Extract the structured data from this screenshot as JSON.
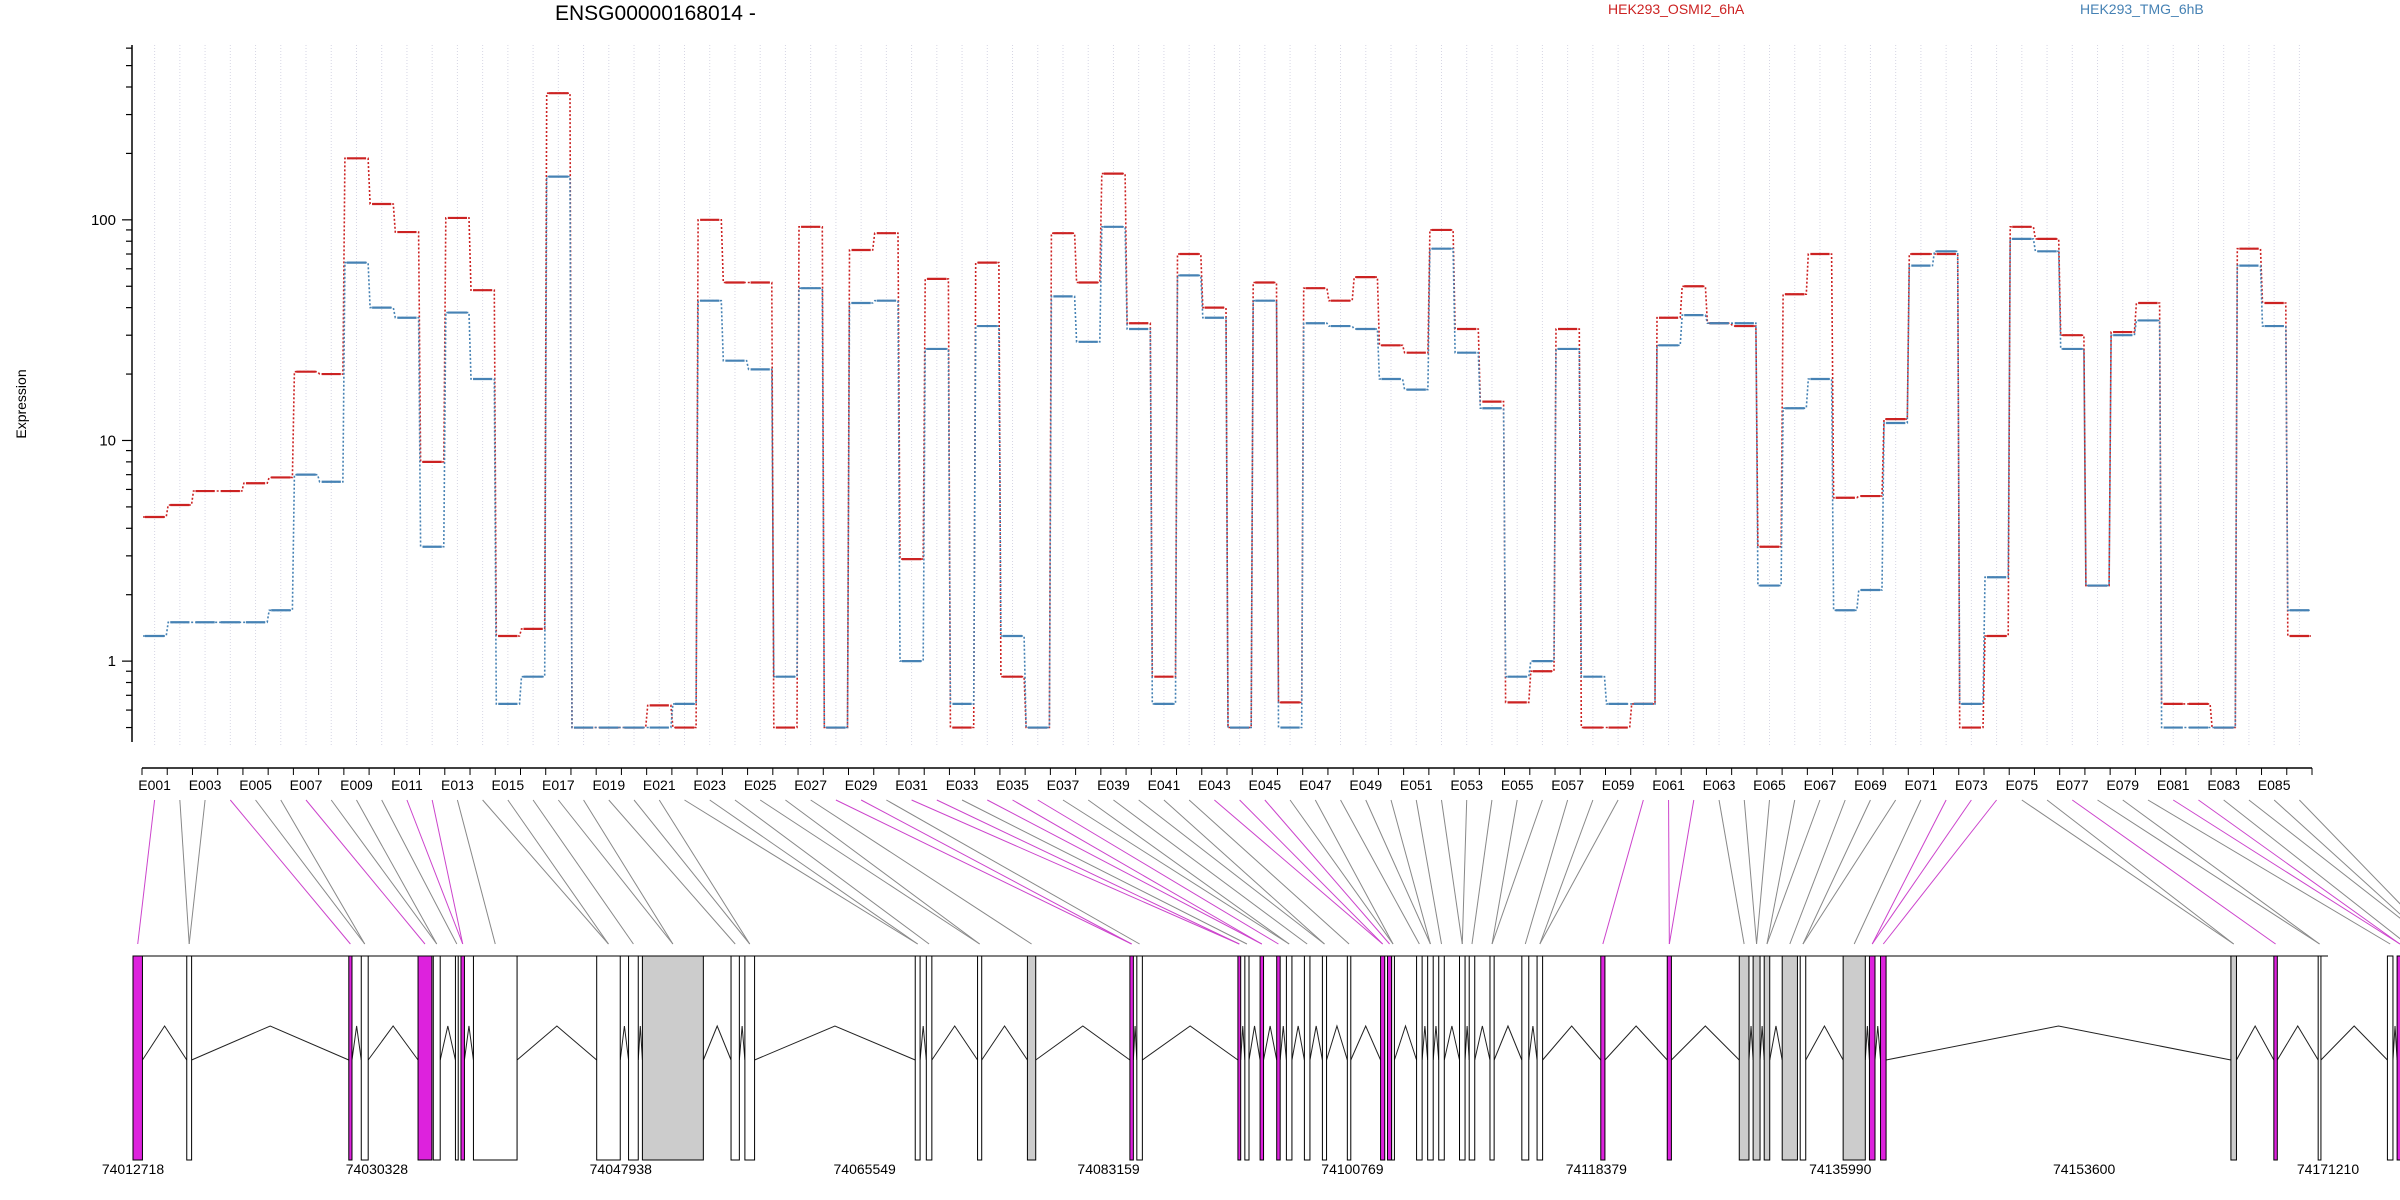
{
  "chart_data": {
    "type": "line",
    "title": "ENSG00000168014 -",
    "ylabel": "Expression",
    "yscale": "log",
    "ylim": [
      0.43,
      620
    ],
    "yticks": [
      1,
      10,
      100
    ],
    "yticklabels": [
      "1",
      "10",
      "100"
    ],
    "grid": "vertical dotted lines at each exon",
    "legend_position": "top-right",
    "categories": [
      "E001",
      "E002",
      "E003",
      "E004",
      "E005",
      "E006",
      "E007",
      "E008",
      "E009",
      "E010",
      "E011",
      "E012",
      "E013",
      "E014",
      "E015",
      "E016",
      "E017",
      "E018",
      "E019",
      "E020",
      "E021",
      "E022",
      "E023",
      "E024",
      "E025",
      "E026",
      "E027",
      "E028",
      "E029",
      "E030",
      "E031",
      "E032",
      "E033",
      "E034",
      "E035",
      "E036",
      "E037",
      "E038",
      "E039",
      "E040",
      "E041",
      "E042",
      "E043",
      "E044",
      "E045",
      "E046",
      "E047",
      "E048",
      "E049",
      "E050",
      "E051",
      "E052",
      "E053",
      "E054",
      "E055",
      "E056",
      "E057",
      "E058",
      "E059",
      "E060",
      "E061",
      "E062",
      "E063",
      "E064",
      "E065",
      "E066",
      "E067",
      "E068",
      "E069",
      "E070",
      "E071",
      "E072",
      "E073",
      "E074",
      "E075",
      "E076",
      "E077",
      "E078",
      "E079",
      "E080",
      "E081",
      "E082",
      "E083",
      "E084",
      "E085",
      "E086"
    ],
    "series": [
      {
        "name": "HEK293_OSMI2_6hA",
        "color": "#cc2222",
        "values": [
          4.5,
          5.1,
          5.9,
          5.9,
          6.4,
          6.8,
          20.5,
          20.0,
          190,
          118,
          88,
          8.0,
          102,
          48,
          1.3,
          1.4,
          375,
          0.5,
          0.5,
          0.5,
          0.63,
          0.5,
          100,
          52,
          52,
          0.5,
          93,
          0.5,
          73,
          87,
          2.9,
          54,
          0.5,
          64,
          0.85,
          0.5,
          87,
          52,
          162,
          34,
          0.85,
          70,
          40,
          0.5,
          52,
          0.65,
          49,
          43,
          55,
          27,
          25,
          90,
          32,
          15,
          0.65,
          0.9,
          32,
          0.5,
          0.5,
          0.64,
          36,
          50,
          34,
          33,
          3.3,
          46,
          70,
          5.5,
          5.6,
          12.5,
          70,
          70,
          0.5,
          1.3,
          93,
          82,
          30,
          2.2,
          31,
          42,
          0.64,
          0.64,
          0.5,
          74,
          42,
          1.3
        ]
      },
      {
        "name": "HEK293_TMG_6hB",
        "color": "#4682b4",
        "values": [
          1.3,
          1.5,
          1.5,
          1.5,
          1.5,
          1.7,
          7.0,
          6.5,
          64,
          40,
          36,
          3.3,
          38,
          19,
          0.64,
          0.85,
          157,
          0.5,
          0.5,
          0.5,
          0.5,
          0.64,
          43,
          23,
          21,
          0.85,
          49,
          0.5,
          42,
          43,
          1.0,
          26,
          0.64,
          33,
          1.3,
          0.5,
          45,
          28,
          93,
          32,
          0.64,
          56,
          36,
          0.5,
          43,
          0.5,
          34,
          33,
          32,
          19,
          17,
          74,
          25,
          14,
          0.85,
          1.0,
          26,
          0.85,
          0.64,
          0.64,
          27,
          37,
          34,
          34,
          2.2,
          14,
          19,
          1.7,
          2.1,
          12,
          62,
          72,
          0.64,
          2.4,
          82,
          72,
          26,
          2.2,
          30,
          35,
          0.5,
          0.5,
          0.5,
          62,
          33,
          1.7
        ]
      }
    ],
    "xtick_labels_shown": [
      "E001",
      "E003",
      "E005",
      "E007",
      "E009",
      "E011",
      "E013",
      "E015",
      "E017",
      "E019",
      "E021",
      "E023",
      "E025",
      "E027",
      "E029",
      "E031",
      "E033",
      "E035",
      "E037",
      "E039",
      "E041",
      "E043",
      "E045",
      "E047",
      "E049",
      "E051",
      "E053",
      "E055",
      "E057",
      "E059",
      "E061",
      "E063",
      "E065",
      "E067",
      "E069",
      "E071",
      "E073",
      "E075",
      "E077",
      "E079",
      "E081",
      "E083",
      "E085"
    ],
    "genome_axis_labels": [
      "74012718",
      "74030328",
      "74047938",
      "74065549",
      "74083159",
      "74100769",
      "74118379",
      "74135990",
      "74153600",
      "74171210"
    ],
    "genome_start": 74012718,
    "genome_end": 74171210,
    "highlight_color": "#dd22dd",
    "exon_fill_default": "#ffffff",
    "exon_fill_grey": "#cccccc"
  },
  "exons": [
    {
      "start": 74012718,
      "end": 74013400,
      "fill": "m"
    },
    {
      "start": 74016600,
      "end": 74016950,
      "fill": "w"
    },
    {
      "start": 74028300,
      "end": 74028530,
      "fill": "m"
    },
    {
      "start": 74029200,
      "end": 74029700,
      "fill": "w"
    },
    {
      "start": 74033300,
      "end": 74034300,
      "fill": "m"
    },
    {
      "start": 74034400,
      "end": 74034900,
      "fill": "w"
    },
    {
      "start": 74036000,
      "end": 74036200,
      "fill": "w"
    },
    {
      "start": 74036400,
      "end": 74036650,
      "fill": "m"
    },
    {
      "start": 74037300,
      "end": 74040450,
      "fill": "w"
    },
    {
      "start": 74046200,
      "end": 74047900,
      "fill": "w"
    },
    {
      "start": 74048500,
      "end": 74049200,
      "fill": "w"
    },
    {
      "start": 74049500,
      "end": 74053900,
      "fill": "g"
    },
    {
      "start": 74055900,
      "end": 74056500,
      "fill": "w"
    },
    {
      "start": 74056900,
      "end": 74057600,
      "fill": "w"
    },
    {
      "start": 74069200,
      "end": 74069550,
      "fill": "w"
    },
    {
      "start": 74070000,
      "end": 74070400,
      "fill": "w"
    },
    {
      "start": 74073700,
      "end": 74074000,
      "fill": "w"
    },
    {
      "start": 74077300,
      "end": 74077900,
      "fill": "g"
    },
    {
      "start": 74084700,
      "end": 74084950,
      "fill": "m"
    },
    {
      "start": 74085200,
      "end": 74085600,
      "fill": "w"
    },
    {
      "start": 74092500,
      "end": 74092700,
      "fill": "m"
    },
    {
      "start": 74093000,
      "end": 74093300,
      "fill": "w"
    },
    {
      "start": 74094100,
      "end": 74094350,
      "fill": "m"
    },
    {
      "start": 74095300,
      "end": 74095550,
      "fill": "m"
    },
    {
      "start": 74096000,
      "end": 74096400,
      "fill": "w"
    },
    {
      "start": 74097300,
      "end": 74097700,
      "fill": "w"
    },
    {
      "start": 74098600,
      "end": 74098900,
      "fill": "w"
    },
    {
      "start": 74100400,
      "end": 74100650,
      "fill": "w"
    },
    {
      "start": 74102800,
      "end": 74103100,
      "fill": "m"
    },
    {
      "start": 74103300,
      "end": 74103600,
      "fill": "m"
    },
    {
      "start": 74103600,
      "end": 74103800,
      "fill": "w"
    },
    {
      "start": 74105400,
      "end": 74105800,
      "fill": "w"
    },
    {
      "start": 74106200,
      "end": 74106600,
      "fill": "w"
    },
    {
      "start": 74107000,
      "end": 74107400,
      "fill": "w"
    },
    {
      "start": 74108500,
      "end": 74108900,
      "fill": "w"
    },
    {
      "start": 74109200,
      "end": 74109600,
      "fill": "w"
    },
    {
      "start": 74110700,
      "end": 74111000,
      "fill": "w"
    },
    {
      "start": 74113000,
      "end": 74113500,
      "fill": "w"
    },
    {
      "start": 74114100,
      "end": 74114500,
      "fill": "w"
    },
    {
      "start": 74118700,
      "end": 74119000,
      "fill": "m"
    },
    {
      "start": 74123500,
      "end": 74123800,
      "fill": "m"
    },
    {
      "start": 74128700,
      "end": 74129400,
      "fill": "g"
    },
    {
      "start": 74129700,
      "end": 74130200,
      "fill": "g"
    },
    {
      "start": 74130500,
      "end": 74130900,
      "fill": "g"
    },
    {
      "start": 74131800,
      "end": 74132900,
      "fill": "g"
    },
    {
      "start": 74133100,
      "end": 74133500,
      "fill": "w"
    },
    {
      "start": 74136200,
      "end": 74137800,
      "fill": "g"
    },
    {
      "start": 74138100,
      "end": 74138500,
      "fill": "m"
    },
    {
      "start": 74138900,
      "end": 74139300,
      "fill": "m"
    },
    {
      "start": 74164200,
      "end": 74164600,
      "fill": "g"
    },
    {
      "start": 74167300,
      "end": 74167550,
      "fill": "m"
    },
    {
      "start": 74170500,
      "end": 74170700,
      "fill": "w"
    },
    {
      "start": 74175500,
      "end": 74175900,
      "fill": "w"
    },
    {
      "start": 74176200,
      "end": 74176600,
      "fill": "m"
    },
    {
      "start": 74176800,
      "end": 74177000,
      "fill": "w"
    },
    {
      "start": 74178700,
      "end": 74178900,
      "fill": "g"
    },
    {
      "start": 74179100,
      "end": 74179350,
      "fill": "g"
    }
  ]
}
